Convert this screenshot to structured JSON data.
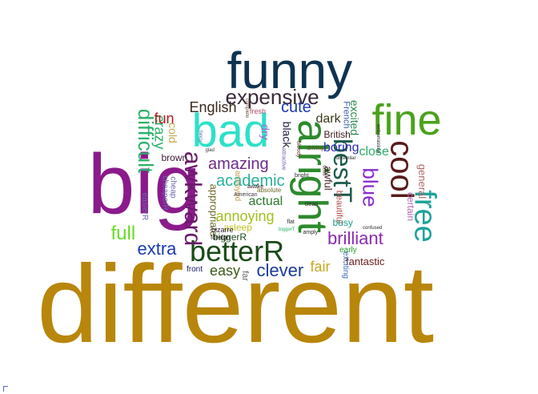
{
  "words": [
    {
      "text": "different",
      "color": "#b8860b"
    },
    {
      "text": "big",
      "color": "#8b1a8b"
    },
    {
      "text": "funny",
      "color": "#0f3350"
    },
    {
      "text": "bad",
      "color": "#2ee0c8"
    },
    {
      "text": "fine",
      "color": "#4aa21c"
    },
    {
      "text": "alright",
      "color": "#2c8a2c"
    },
    {
      "text": "expensive",
      "color": "#3a2a3a"
    },
    {
      "text": "cool",
      "color": "#5a1a1a"
    },
    {
      "text": "free",
      "color": "#1fa39a"
    },
    {
      "text": "betterR",
      "color": "#1a4a1a"
    },
    {
      "text": "awkward",
      "color": "#6a1a6a"
    },
    {
      "text": "bestT",
      "color": "#1a5a4a"
    },
    {
      "text": "blue",
      "color": "#8a2ad0"
    },
    {
      "text": "difficult",
      "color": "#2ab06a"
    },
    {
      "text": "full",
      "color": "#66dd22"
    },
    {
      "text": "extra",
      "color": "#1a3ab0"
    },
    {
      "text": "clever",
      "color": "#1a3a9a"
    },
    {
      "text": "brilliant",
      "color": "#8a2ab0"
    },
    {
      "text": "amazing",
      "color": "#6a2a8a"
    },
    {
      "text": "English",
      "color": "#3a2a1a"
    },
    {
      "text": "cute",
      "color": "#1a3ab0"
    },
    {
      "text": "crazy",
      "color": "#2ab06a"
    },
    {
      "text": "fun",
      "color": "#b01a1a"
    },
    {
      "text": "cold",
      "color": "#c8a850"
    },
    {
      "text": "academic",
      "color": "#2ab0a0"
    },
    {
      "text": "annoying",
      "color": "#a0c020"
    },
    {
      "text": "actual",
      "color": "#2a7a2a"
    },
    {
      "text": "easy",
      "color": "#3a5a1a"
    },
    {
      "text": "fair",
      "color": "#c8a820"
    },
    {
      "text": "dark",
      "color": "#3a3a1a"
    },
    {
      "text": "black",
      "color": "#1a1a3a"
    },
    {
      "text": "boring",
      "color": "#2a2ab0"
    },
    {
      "text": "close",
      "color": "#2ab06a"
    },
    {
      "text": "excited",
      "color": "#2a8a4a"
    },
    {
      "text": "French",
      "color": "#3a5ab0"
    },
    {
      "text": "British",
      "color": "#3a1a1a"
    },
    {
      "text": "general",
      "color": "#b06a6a"
    },
    {
      "text": "certain",
      "color": "#b06ab0"
    },
    {
      "text": "fantastic",
      "color": "#6a1a1a"
    },
    {
      "text": "dry",
      "color": "#a06ad0"
    },
    {
      "text": "brown",
      "color": "#3a1a3a"
    },
    {
      "text": "appropriate",
      "color": "#6a6a2a"
    },
    {
      "text": "asleep",
      "color": "#c0c020"
    },
    {
      "text": "biggerR",
      "color": "#1a4a1a"
    },
    {
      "text": "awful",
      "color": "#3a1a1a"
    },
    {
      "text": "beautiful",
      "color": "#b04a4a"
    },
    {
      "text": "busy",
      "color": "#20a090"
    },
    {
      "text": "cheap",
      "color": "#6a6ab0"
    },
    {
      "text": "cheaperR",
      "color": "#6a6ab0"
    },
    {
      "text": "easierR",
      "color": "#6a6ab0"
    },
    {
      "text": "early",
      "color": "#2a9a2a"
    },
    {
      "text": "exciting",
      "color": "#3a6ab0"
    },
    {
      "text": "front",
      "color": "#1a1a6a"
    },
    {
      "text": "far",
      "color": "#6a6a6a"
    },
    {
      "text": "bizarre",
      "color": "#2a1a2a"
    },
    {
      "text": "foreign",
      "color": "#2a1a2a"
    },
    {
      "text": "fresh",
      "color": "#b04a6a"
    },
    {
      "text": "complete",
      "color": "#6a4a2a"
    },
    {
      "text": "fancy",
      "color": "#6a6ab0"
    },
    {
      "text": "glad",
      "color": "#3a3a3a"
    },
    {
      "text": "annoyed",
      "color": "#c0a050"
    },
    {
      "text": "American",
      "color": "#3a3a3a"
    },
    {
      "text": "awake",
      "color": "#2a1a1a"
    },
    {
      "text": "absolute",
      "color": "#6a6a2a"
    },
    {
      "text": "attractive",
      "color": "#6a6ab0"
    },
    {
      "text": "bloody",
      "color": "#6a3a3a"
    },
    {
      "text": "bright",
      "color": "#2a2a2a"
    },
    {
      "text": "driving",
      "color": "#6a4a2a"
    },
    {
      "text": "clean",
      "color": "#2a2a2a"
    },
    {
      "text": "flat",
      "color": "#2a2a2a"
    },
    {
      "text": "biggerT",
      "color": "#2ab06a"
    },
    {
      "text": "amply",
      "color": "#2a2a2a"
    },
    {
      "text": "dissimilar",
      "color": "#2a2a2a"
    },
    {
      "text": "dead",
      "color": "#2a2a2a"
    },
    {
      "text": "confused",
      "color": "#2a2a2a"
    },
    {
      "text": "embarrassing",
      "color": "#2a2a2a"
    }
  ]
}
